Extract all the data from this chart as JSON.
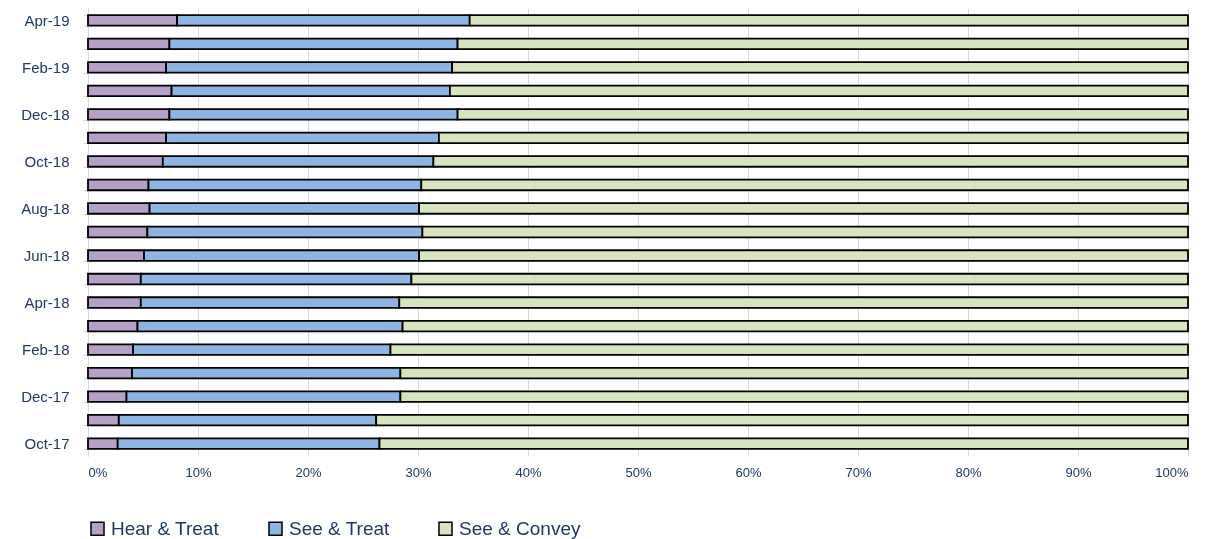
{
  "chart_data": {
    "type": "bar",
    "orientation": "horizontal",
    "stacked": true,
    "categories": [
      "Apr-19",
      null,
      "Feb-19",
      null,
      "Dec-18",
      null,
      "Oct-18",
      null,
      "Aug-18",
      null,
      "Jun-18",
      null,
      "Apr-18",
      null,
      "Feb-18",
      null,
      "Dec-17",
      null,
      "Oct-17"
    ],
    "series": [
      {
        "name": "Hear & Treat",
        "color": "#b4a0c8",
        "values": [
          8.1,
          7.4,
          7.1,
          7.6,
          7.4,
          7.1,
          6.8,
          5.5,
          5.6,
          5.4,
          5.1,
          4.8,
          4.8,
          4.5,
          4.1,
          4.0,
          3.5,
          2.8,
          2.7
        ]
      },
      {
        "name": "See & Treat",
        "color": "#8eb4e3",
        "values": [
          26.6,
          26.2,
          26.0,
          25.3,
          26.2,
          24.8,
          24.6,
          24.8,
          24.5,
          25.0,
          25.0,
          24.6,
          23.5,
          24.1,
          23.4,
          24.4,
          24.9,
          23.4,
          23.8
        ]
      },
      {
        "name": "See & Convey",
        "color": "#d7e4bd",
        "values": [
          65.3,
          66.4,
          66.9,
          67.1,
          66.4,
          68.1,
          68.6,
          69.7,
          69.9,
          69.6,
          69.9,
          70.6,
          71.7,
          71.4,
          72.5,
          71.6,
          71.6,
          73.8,
          73.5
        ]
      }
    ],
    "xlim": [
      0,
      100
    ],
    "xticks": [
      {
        "value": 0,
        "label": "0%"
      },
      {
        "value": 10,
        "label": "10%"
      },
      {
        "value": 20,
        "label": "20%"
      },
      {
        "value": 30,
        "label": "30%"
      },
      {
        "value": 40,
        "label": "40%"
      },
      {
        "value": 50,
        "label": "50%"
      },
      {
        "value": 60,
        "label": "60%"
      },
      {
        "value": 70,
        "label": "70%"
      },
      {
        "value": 80,
        "label": "80%"
      },
      {
        "value": 90,
        "label": "90%"
      },
      {
        "value": 100,
        "label": "100%"
      }
    ],
    "grid": "x",
    "legend": "bottom"
  }
}
